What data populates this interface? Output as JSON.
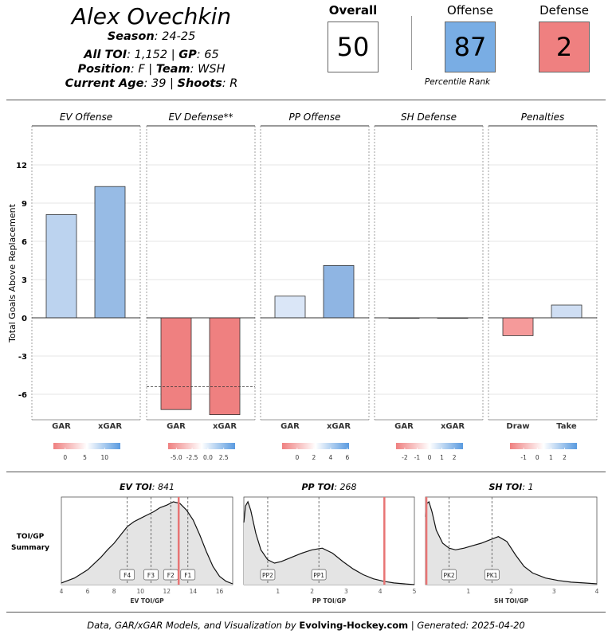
{
  "player": {
    "name": "Alex Ovechkin",
    "season_label": "Season",
    "season": "24-25",
    "toi_label": "All TOI",
    "toi": "1,152",
    "gp_label": "GP",
    "gp": "65",
    "position_label": "Position",
    "position": "F",
    "team_label": "Team",
    "team": "WSH",
    "age_label": "Current Age",
    "age": "39",
    "shoots_label": "Shoots",
    "shoots": "R"
  },
  "ratings": {
    "overall_label": "Overall",
    "overall": "50",
    "overall_color": "#ffffff",
    "offense_label": "Offense",
    "offense": "87",
    "offense_color": "#79ade4",
    "defense_label": "Defense",
    "defense": "2",
    "defense_color": "#ef8080",
    "percentile_caption": "Percentile Rank"
  },
  "chart_data": [
    {
      "type": "bar",
      "ylabel": "Total Goals Above Replacement",
      "yticks": [
        12,
        9,
        6,
        3,
        0,
        -3,
        -6
      ],
      "ylim": [
        -7.9,
        15.5
      ],
      "panels": [
        {
          "title": "EV Offense",
          "categories": [
            "GAR",
            "xGAR"
          ],
          "values": [
            8.1,
            10.3
          ],
          "bar_colors": [
            "#bcd3ef",
            "#97bbe5"
          ],
          "legend_ticks": [
            "0",
            "5",
            "10"
          ],
          "legend_tick_values": [
            0,
            5,
            10
          ],
          "legend_range": [
            -3,
            14
          ]
        },
        {
          "title": "EV Defense**",
          "categories": [
            "GAR",
            "xGAR"
          ],
          "values": [
            -7.2,
            -7.6
          ],
          "bar_colors": [
            "#ef8080",
            "#ef8080"
          ],
          "reference_line": -5.4,
          "legend_ticks": [
            "-5.0",
            "-2.5",
            "0.0",
            "2.5"
          ],
          "legend_tick_values": [
            -5,
            -2.5,
            0,
            2.5
          ],
          "legend_range": [
            -6.3,
            4.3
          ]
        },
        {
          "title": "PP Offense",
          "categories": [
            "GAR",
            "xGAR"
          ],
          "values": [
            1.7,
            4.1
          ],
          "bar_colors": [
            "#dae6f7",
            "#8fb5e3"
          ],
          "legend_ticks": [
            "0",
            "2",
            "4",
            "6"
          ],
          "legend_tick_values": [
            0,
            2,
            4,
            6
          ],
          "legend_range": [
            -1.8,
            6.2
          ]
        },
        {
          "title": "SH Defense",
          "categories": [
            "GAR",
            "xGAR"
          ],
          "values": [
            0.0,
            0.0
          ],
          "bar_colors": [
            "#ffffff",
            "#ffffff"
          ],
          "legend_ticks": [
            "-2",
            "-1",
            "0",
            "1",
            "2"
          ],
          "legend_tick_values": [
            -2,
            -1,
            0,
            1,
            2
          ],
          "legend_range": [
            -2.7,
            2.7
          ]
        },
        {
          "title": "Penalties",
          "categories": [
            "Draw",
            "Take"
          ],
          "values": [
            -1.4,
            1.0
          ],
          "bar_colors": [
            "#f59a9a",
            "#cfdef3"
          ],
          "legend_ticks": [
            "-1",
            "0",
            "1",
            "2"
          ],
          "legend_tick_values": [
            -1,
            0,
            1,
            2
          ],
          "legend_range": [
            -2.0,
            2.9
          ]
        }
      ]
    },
    {
      "type": "area",
      "row_label_line1": "TOI/GP",
      "row_label_line2": "Summary",
      "panels": [
        {
          "title_label": "EV TOI",
          "title_value": "841",
          "xlabel": "EV TOI/GP",
          "xlim": [
            4,
            17
          ],
          "xticks": [
            4,
            6,
            8,
            10,
            12,
            14,
            16
          ],
          "density_x": [
            4,
            5,
            6,
            7,
            7.5,
            8,
            8.5,
            9,
            9.5,
            10,
            10.5,
            11,
            11.5,
            12,
            12.5,
            13,
            13.5,
            14,
            14.5,
            15,
            15.5,
            16,
            16.5,
            17
          ],
          "density_y": [
            0.02,
            0.08,
            0.18,
            0.33,
            0.42,
            0.5,
            0.6,
            0.7,
            0.76,
            0.8,
            0.84,
            0.88,
            0.93,
            0.96,
            1.0,
            0.98,
            0.9,
            0.78,
            0.6,
            0.4,
            0.22,
            0.1,
            0.04,
            0.01
          ],
          "markers": [
            {
              "label": "F4",
              "x": 9.0
            },
            {
              "label": "F3",
              "x": 10.8
            },
            {
              "label": "F2",
              "x": 12.3
            },
            {
              "label": "F1",
              "x": 13.6
            }
          ],
          "player_value": 12.9
        },
        {
          "title_label": "PP TOI",
          "title_value": "268",
          "xlabel": "PP TOI/GP",
          "xlim": [
            0,
            5
          ],
          "xticks": [
            1,
            2,
            3,
            4,
            5
          ],
          "density_x": [
            0,
            0.05,
            0.12,
            0.2,
            0.35,
            0.5,
            0.7,
            0.9,
            1.1,
            1.4,
            1.7,
            2.0,
            2.3,
            2.6,
            2.9,
            3.2,
            3.5,
            3.8,
            4.1,
            4.4,
            4.7,
            5.0
          ],
          "density_y": [
            0.75,
            0.95,
            1.0,
            0.9,
            0.62,
            0.42,
            0.3,
            0.26,
            0.28,
            0.33,
            0.38,
            0.42,
            0.44,
            0.38,
            0.28,
            0.19,
            0.12,
            0.07,
            0.04,
            0.02,
            0.01,
            0.0
          ],
          "markers": [
            {
              "label": "PP2",
              "x": 0.7
            },
            {
              "label": "PP1",
              "x": 2.2
            }
          ],
          "player_value": 4.12
        },
        {
          "title_label": "SH TOI",
          "title_value": "1",
          "xlabel": "SH TOI/GP",
          "xlim": [
            0,
            4
          ],
          "xticks": [
            1,
            2,
            3,
            4
          ],
          "density_x": [
            0,
            0.03,
            0.08,
            0.15,
            0.25,
            0.4,
            0.55,
            0.7,
            0.9,
            1.1,
            1.3,
            1.5,
            1.7,
            1.9,
            2.1,
            2.3,
            2.5,
            2.8,
            3.1,
            3.4,
            3.7,
            4.0
          ],
          "density_y": [
            0.82,
            0.98,
            1.0,
            0.88,
            0.66,
            0.5,
            0.44,
            0.42,
            0.44,
            0.47,
            0.5,
            0.54,
            0.58,
            0.52,
            0.36,
            0.22,
            0.14,
            0.08,
            0.05,
            0.03,
            0.02,
            0.01
          ],
          "markers": [
            {
              "label": "PK2",
              "x": 0.55
            },
            {
              "label": "PK1",
              "x": 1.55
            }
          ],
          "player_value": 0.02
        }
      ]
    }
  ],
  "footer": {
    "prefix": "Data, GAR/xGAR Models, and Visualization by ",
    "brand": "Evolving-Hockey.com",
    "suffix": " | Generated: 2025-04-20"
  }
}
